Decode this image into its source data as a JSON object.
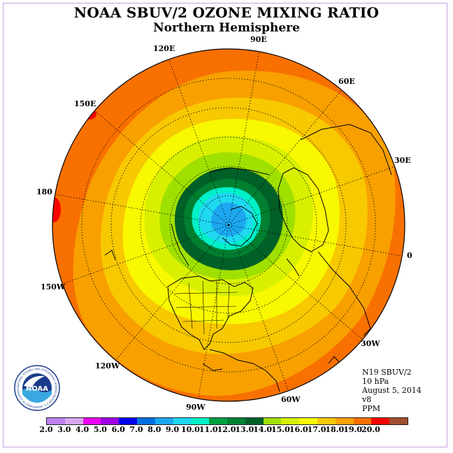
{
  "title": "NOAA SBUV/2 OZONE MIXING RATIO",
  "subtitle": "Northern Hemisphere",
  "longitude_labels": [
    "90E",
    "120E",
    "60E",
    "150E",
    "30E",
    "180",
    "0",
    "150W",
    "30W",
    "120W",
    "60W",
    "90W"
  ],
  "info": {
    "instrument": "N19 SBUV/2",
    "pressure": "10 hPa",
    "date": "August 5, 2014",
    "version": "v8",
    "units": "PPM"
  },
  "logo": {
    "text": "NOAA",
    "ring_text": "NATIONAL OCEANIC AND ATMOSPHERIC ADMINISTRATION U.S. DEPARTMENT OF COMMERCE"
  },
  "colorbar": {
    "tick_labels": [
      "2.0",
      "3.0",
      "4.0",
      "5.0",
      "6.0",
      "7.0",
      "8.0",
      "9.0",
      "10.0",
      "11.0",
      "12.0",
      "13.0",
      "14.0",
      "15.0",
      "16.0",
      "17.0",
      "18.0",
      "19.0",
      "20.0"
    ],
    "colors": [
      "#c080f0",
      "#d8a8f0",
      "#f000f0",
      "#a000e8",
      "#0000f0",
      "#0070e0",
      "#1ca8f0",
      "#20d8f0",
      "#00f0c8",
      "#00a040",
      "#008030",
      "#006028",
      "#a0e000",
      "#d8f000",
      "#f8f800",
      "#f8c800",
      "#f8a000",
      "#f87000",
      "#f80000",
      "#a05030"
    ]
  }
}
